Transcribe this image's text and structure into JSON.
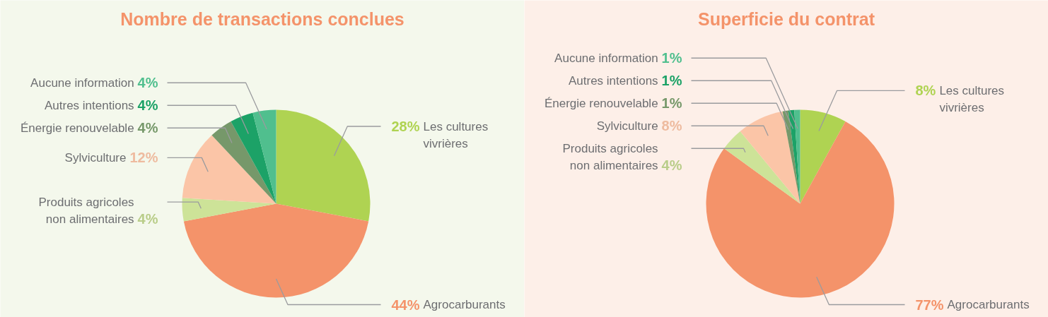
{
  "chart_data": [
    {
      "type": "pie",
      "title": "Nombre de transactions conclues",
      "categories": [
        "Les cultures vivrières",
        "Agrocarburants",
        "Produits agricoles non alimentaires",
        "Sylviculture",
        "Énergie renouvelable",
        "Autres intentions",
        "Aucune information"
      ],
      "values": [
        28,
        44,
        4,
        12,
        4,
        4,
        4
      ],
      "value_labels": [
        "28%",
        "44%",
        "4%",
        "12%",
        "4%",
        "4%",
        "4%"
      ],
      "colors": [
        "#afd352",
        "#f4936a",
        "#cde398",
        "#fbc5a7",
        "#76986a",
        "#1ca267",
        "#50bf8e"
      ]
    },
    {
      "type": "pie",
      "title": "Superficie du contrat",
      "categories": [
        "Les cultures vivrières",
        "Agrocarburants",
        "Produits agricoles non alimentaires",
        "Sylviculture",
        "Énergie renouvelable",
        "Autres intentions",
        "Aucune information"
      ],
      "values": [
        8,
        77,
        4,
        8,
        1,
        1,
        1
      ],
      "value_labels": [
        "8%",
        "77%",
        "4%",
        "8%",
        "1%",
        "1%",
        "1%"
      ],
      "colors": [
        "#afd352",
        "#f4936a",
        "#cde398",
        "#fbc5a7",
        "#76986a",
        "#1ca267",
        "#50bf8e"
      ]
    }
  ]
}
